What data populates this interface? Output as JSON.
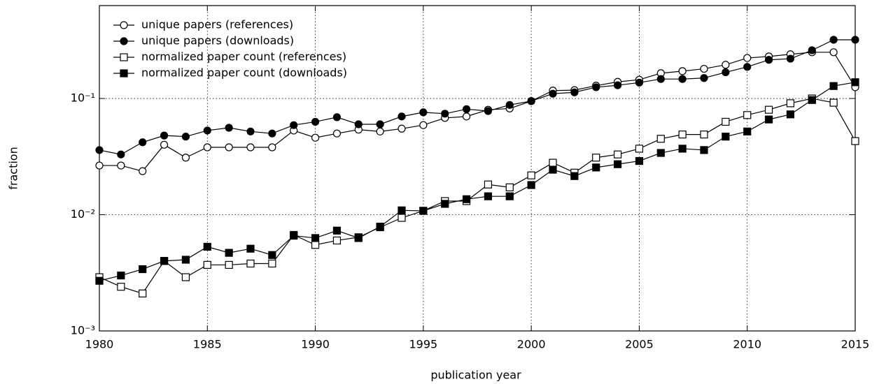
{
  "chart_data": {
    "type": "line",
    "x_label": "publication year",
    "y_label": "fraction",
    "x": [
      1980,
      1981,
      1982,
      1983,
      1984,
      1985,
      1986,
      1987,
      1988,
      1989,
      1990,
      1991,
      1992,
      1993,
      1994,
      1995,
      1996,
      1997,
      1998,
      1999,
      2000,
      2001,
      2002,
      2003,
      2004,
      2005,
      2006,
      2007,
      2008,
      2009,
      2010,
      2011,
      2012,
      2013,
      2014,
      2015
    ],
    "xlim": [
      1980,
      2015
    ],
    "xticks": [
      1980,
      1985,
      1990,
      1995,
      2000,
      2005,
      2010,
      2015
    ],
    "ylim": [
      0.001,
      0.63
    ],
    "log_y": true,
    "yticks": [
      {
        "value": 0.001,
        "label": "10⁻³"
      },
      {
        "value": 0.01,
        "label": "10⁻²"
      },
      {
        "value": 0.1,
        "label": "10⁻¹"
      }
    ],
    "grid": true,
    "legend": "upper left",
    "series": [
      {
        "name": "unique papers (references)",
        "color": "#000000",
        "marker": "circle",
        "filled": false,
        "values": [
          0.0265,
          0.0265,
          0.0237,
          0.04,
          0.031,
          0.038,
          0.038,
          0.038,
          0.038,
          0.053,
          0.046,
          0.05,
          0.054,
          0.052,
          0.055,
          0.059,
          0.068,
          0.07,
          0.08,
          0.082,
          0.095,
          0.117,
          0.118,
          0.129,
          0.139,
          0.145,
          0.165,
          0.172,
          0.18,
          0.195,
          0.223,
          0.23,
          0.24,
          0.25,
          0.25,
          0.125
        ]
      },
      {
        "name": "unique papers (downloads)",
        "color": "#000000",
        "marker": "circle",
        "filled": true,
        "values": [
          0.036,
          0.033,
          0.042,
          0.048,
          0.047,
          0.053,
          0.056,
          0.052,
          0.05,
          0.059,
          0.063,
          0.069,
          0.06,
          0.06,
          0.07,
          0.076,
          0.074,
          0.081,
          0.078,
          0.088,
          0.095,
          0.11,
          0.113,
          0.125,
          0.13,
          0.137,
          0.147,
          0.147,
          0.15,
          0.168,
          0.187,
          0.215,
          0.22,
          0.26,
          0.32,
          0.32
        ]
      },
      {
        "name": "normalized paper count (references)",
        "color": "#000000",
        "marker": "square",
        "filled": false,
        "values": [
          0.0029,
          0.0024,
          0.0021,
          0.004,
          0.0029,
          0.0037,
          0.0037,
          0.0038,
          0.0038,
          0.0067,
          0.0055,
          0.006,
          0.0064,
          0.0078,
          0.0094,
          0.0108,
          0.0131,
          0.0131,
          0.0182,
          0.0172,
          0.0218,
          0.028,
          0.023,
          0.031,
          0.033,
          0.037,
          0.045,
          0.049,
          0.049,
          0.063,
          0.072,
          0.08,
          0.091,
          0.1,
          0.092,
          0.043
        ]
      },
      {
        "name": "normalized paper count (downloads)",
        "color": "#000000",
        "marker": "square",
        "filled": true,
        "values": [
          0.0027,
          0.003,
          0.0034,
          0.004,
          0.0041,
          0.0053,
          0.0047,
          0.0051,
          0.0045,
          0.0066,
          0.0063,
          0.0073,
          0.0063,
          0.0079,
          0.0109,
          0.0108,
          0.0124,
          0.0136,
          0.0144,
          0.0144,
          0.018,
          0.0244,
          0.0215,
          0.0255,
          0.0272,
          0.029,
          0.034,
          0.037,
          0.036,
          0.047,
          0.052,
          0.066,
          0.073,
          0.097,
          0.128,
          0.138
        ]
      }
    ]
  }
}
